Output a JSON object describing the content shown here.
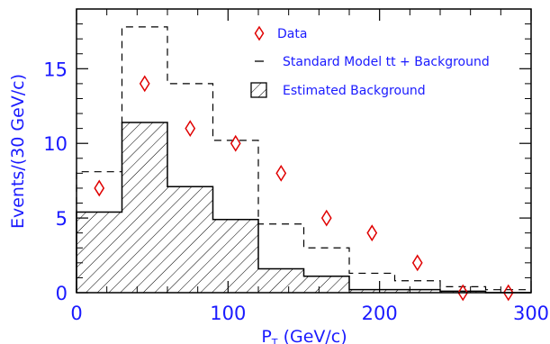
{
  "chart_data": {
    "type": "bar",
    "x_axis": {
      "label_main": "P",
      "label_sub": "T",
      "label_rest": " (GeV/c)",
      "range": [
        0,
        300
      ],
      "ticks": [
        0,
        100,
        200,
        300
      ],
      "tick_labels": [
        "0",
        "100",
        "200",
        "300"
      ]
    },
    "y_axis": {
      "label": "Events/(30 GeV/c)",
      "range": [
        0,
        19
      ],
      "ticks": [
        0,
        5,
        10,
        15
      ],
      "tick_labels": [
        "0",
        "5",
        "10",
        "15"
      ]
    },
    "bin_edges": [
      0,
      30,
      60,
      90,
      120,
      150,
      180,
      210,
      240,
      270,
      300
    ],
    "series": [
      {
        "name": "Data",
        "kind": "points",
        "marker": "diamond",
        "color": "#e00000",
        "x": [
          15,
          45,
          75,
          105,
          135,
          165,
          195,
          225,
          255,
          285
        ],
        "y": [
          7,
          14,
          11,
          10,
          8,
          5,
          4,
          2,
          0,
          0
        ]
      },
      {
        "name": "Standard Model tt + Background",
        "kind": "step",
        "style": "dashed",
        "color": "#000000",
        "values": [
          8.1,
          17.8,
          14.0,
          10.2,
          4.6,
          3.0,
          1.3,
          0.8,
          0.4,
          0.2
        ]
      },
      {
        "name": "Estimated Background",
        "kind": "hatched-bars",
        "color": "#000000",
        "values": [
          5.4,
          11.4,
          7.1,
          4.9,
          1.6,
          1.1,
          0.2,
          0.2,
          0.1,
          0.0
        ]
      }
    ],
    "legend": {
      "position": "top-right",
      "data_label": "Data",
      "sm_label": "Standard Model tt + Background",
      "bkg_label": "Estimated Background"
    },
    "colors": {
      "axis_text": "#1a1aff",
      "data_marker": "#e00000",
      "lines": "#000000"
    },
    "grid": false
  }
}
